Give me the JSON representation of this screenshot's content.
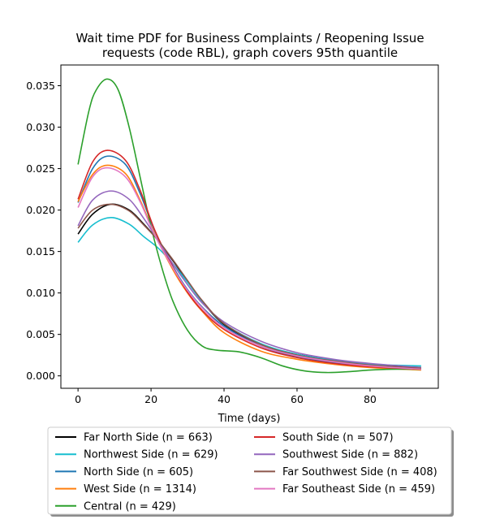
{
  "chart_data": {
    "type": "line",
    "title": "Wait time PDF for Business Complaints / Reopening Issue",
    "subtitle": "requests (code RBL), graph covers 95th quantile",
    "xlabel": "Time (days)",
    "ylabel": "",
    "xlim": [
      -4.7,
      98.7
    ],
    "ylim": [
      -0.0015,
      0.0375
    ],
    "x_ticks": [
      0,
      20,
      40,
      60,
      80
    ],
    "y_ticks": [
      0.0,
      0.005,
      0.01,
      0.015,
      0.02,
      0.025,
      0.03,
      0.035
    ],
    "y_tick_labels": [
      "0.000",
      "0.005",
      "0.010",
      "0.015",
      "0.020",
      "0.025",
      "0.030",
      "0.035"
    ],
    "grid": false,
    "legend_placement": "below",
    "series": [
      {
        "name": "Far North Side (n = 663)",
        "color": "#000000",
        "x": [
          0,
          4,
          9,
          14,
          18,
          22,
          26,
          30,
          34,
          40,
          50,
          60,
          70,
          80,
          94
        ],
        "y": [
          0.0171,
          0.0195,
          0.0207,
          0.02,
          0.0183,
          0.0163,
          0.0139,
          0.0114,
          0.009,
          0.0062,
          0.0038,
          0.0026,
          0.0019,
          0.0014,
          0.001
        ]
      },
      {
        "name": "Northwest Side (n = 629)",
        "color": "#17becf",
        "x": [
          0,
          4,
          9,
          14,
          18,
          22,
          26,
          30,
          34,
          40,
          50,
          60,
          70,
          80,
          94
        ],
        "y": [
          0.0161,
          0.0182,
          0.0191,
          0.0183,
          0.0168,
          0.0154,
          0.0135,
          0.0113,
          0.009,
          0.0063,
          0.0039,
          0.0026,
          0.0019,
          0.0014,
          0.0012
        ]
      },
      {
        "name": "North Side (n = 605)",
        "color": "#1f77b4",
        "x": [
          0,
          4,
          8,
          13,
          17,
          21,
          26,
          30,
          34,
          40,
          50,
          60,
          70,
          80,
          94
        ],
        "y": [
          0.0209,
          0.025,
          0.0265,
          0.0255,
          0.022,
          0.0175,
          0.0132,
          0.0104,
          0.0083,
          0.006,
          0.0036,
          0.0023,
          0.0016,
          0.0012,
          0.0009
        ]
      },
      {
        "name": "West Side (n = 1314)",
        "color": "#ff7f0e",
        "x": [
          0,
          4,
          8,
          13,
          17,
          21,
          26,
          30,
          34,
          40,
          50,
          60,
          70,
          80,
          94
        ],
        "y": [
          0.021,
          0.0243,
          0.0254,
          0.0244,
          0.0212,
          0.0171,
          0.0128,
          0.01,
          0.0078,
          0.0052,
          0.003,
          0.002,
          0.0014,
          0.001,
          0.0007
        ]
      },
      {
        "name": "Central (n = 429)",
        "color": "#2ca02c",
        "x": [
          0,
          3,
          5,
          8,
          11,
          14,
          17,
          20,
          23,
          26,
          30,
          34,
          38,
          44,
          50,
          56,
          62,
          68,
          74,
          80,
          86,
          94
        ],
        "y": [
          0.0255,
          0.032,
          0.0345,
          0.0358,
          0.0345,
          0.03,
          0.024,
          0.018,
          0.013,
          0.009,
          0.0055,
          0.0036,
          0.0031,
          0.0029,
          0.0022,
          0.0012,
          0.0006,
          0.0004,
          0.0005,
          0.0007,
          0.0008,
          0.0008
        ]
      },
      {
        "name": "South Side (n = 507)",
        "color": "#d62728",
        "x": [
          0,
          4,
          8,
          13,
          17,
          21,
          26,
          30,
          34,
          40,
          50,
          60,
          70,
          80,
          94
        ],
        "y": [
          0.0213,
          0.0258,
          0.0272,
          0.026,
          0.0224,
          0.0176,
          0.0131,
          0.0101,
          0.0079,
          0.0056,
          0.0034,
          0.0022,
          0.0015,
          0.0011,
          0.0008
        ]
      },
      {
        "name": "Southwest Side (n = 882)",
        "color": "#9467bd",
        "x": [
          0,
          4,
          9,
          14,
          18,
          22,
          26,
          30,
          34,
          40,
          50,
          60,
          70,
          80,
          94
        ],
        "y": [
          0.0181,
          0.0212,
          0.0223,
          0.0213,
          0.019,
          0.0163,
          0.0135,
          0.011,
          0.0088,
          0.0065,
          0.0042,
          0.0028,
          0.002,
          0.0015,
          0.001
        ]
      },
      {
        "name": "Far Southwest Side (n = 408)",
        "color": "#8c564b",
        "x": [
          0,
          4,
          9,
          14,
          18,
          22,
          26,
          30,
          34,
          40,
          50,
          60,
          70,
          80,
          94
        ],
        "y": [
          0.0178,
          0.02,
          0.0207,
          0.0199,
          0.0182,
          0.0163,
          0.014,
          0.0115,
          0.0091,
          0.0063,
          0.0038,
          0.0025,
          0.0018,
          0.0013,
          0.0009
        ]
      },
      {
        "name": "Far Southeast Side (n = 459)",
        "color": "#e377c2",
        "x": [
          0,
          4,
          8,
          13,
          17,
          21,
          26,
          30,
          34,
          40,
          50,
          60,
          70,
          80,
          94
        ],
        "y": [
          0.0203,
          0.024,
          0.0251,
          0.024,
          0.021,
          0.017,
          0.013,
          0.0103,
          0.0082,
          0.0058,
          0.0036,
          0.0024,
          0.0017,
          0.0012,
          0.0008
        ]
      }
    ]
  }
}
